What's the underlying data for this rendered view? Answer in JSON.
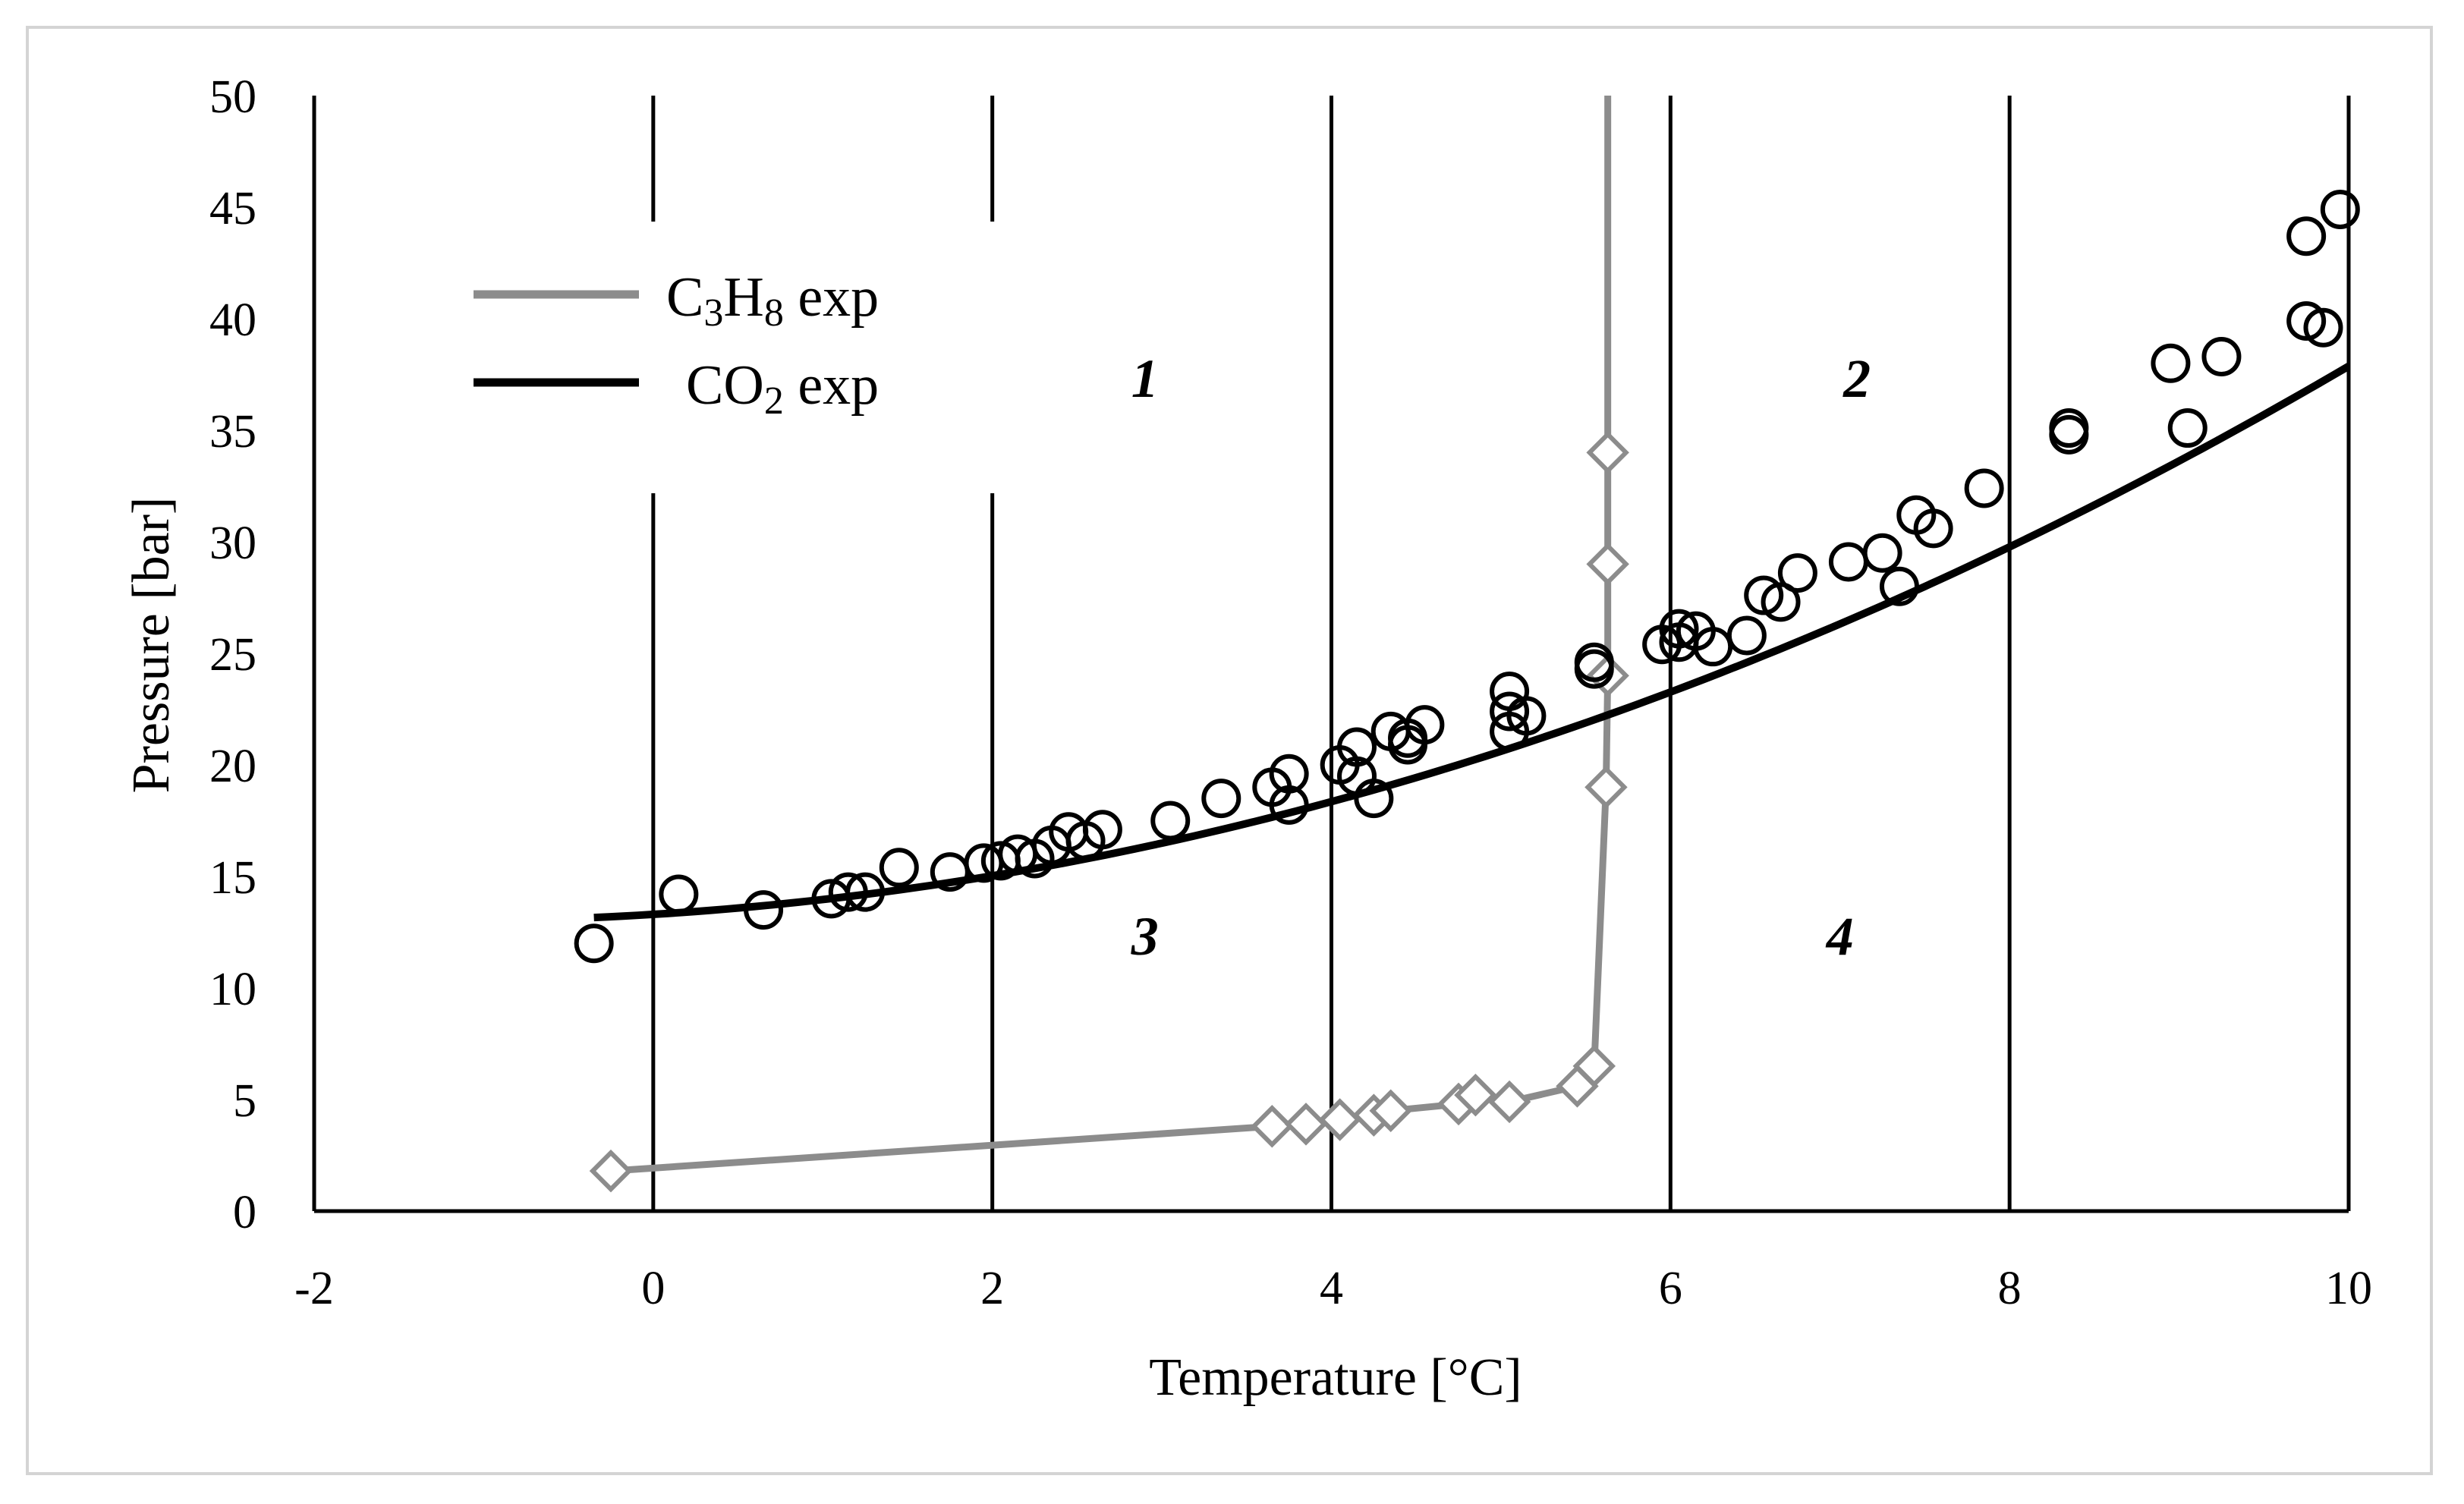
{
  "chart_data": {
    "type": "scatter",
    "title": "",
    "xlabel": "Temperature [°C]",
    "ylabel": "Pressure [bar]",
    "xlim": [
      -2,
      10
    ],
    "ylim": [
      0,
      50
    ],
    "x_ticks": [
      -2,
      0,
      2,
      4,
      6,
      8,
      10
    ],
    "y_ticks": [
      0,
      5,
      10,
      15,
      20,
      25,
      30,
      35,
      40,
      45,
      50
    ],
    "grid": "vertical lines at x = 0, 2, 4, 6, 8, 10",
    "legend": {
      "position": "top-left",
      "entries": [
        {
          "formula": [
            "C",
            "3",
            "H",
            "8"
          ],
          "suffix": " exp",
          "color": "#8c8c8c"
        },
        {
          "formula": [
            "CO",
            "2"
          ],
          "suffix": " exp",
          "color": "#000000"
        }
      ]
    },
    "region_labels": [
      {
        "text": "1",
        "x": 2.9,
        "y": 36.5
      },
      {
        "text": "2",
        "x": 7.1,
        "y": 36.5
      },
      {
        "text": "3",
        "x": 2.9,
        "y": 11.5
      },
      {
        "text": "4",
        "x": 7.0,
        "y": 11.5
      }
    ],
    "series": [
      {
        "name": "C3H8 exp",
        "color": "#8c8c8c",
        "marker": "diamond",
        "line": "connected",
        "points": [
          [
            -0.25,
            1.8
          ],
          [
            3.65,
            3.8
          ],
          [
            3.85,
            3.9
          ],
          [
            4.05,
            4.1
          ],
          [
            4.25,
            4.3
          ],
          [
            4.35,
            4.5
          ],
          [
            4.75,
            4.8
          ],
          [
            4.85,
            5.2
          ],
          [
            5.05,
            4.9
          ],
          [
            5.45,
            5.6
          ],
          [
            5.55,
            6.5
          ],
          [
            5.62,
            19.0
          ],
          [
            5.63,
            24.0
          ],
          [
            5.63,
            29.0
          ],
          [
            5.63,
            34.0
          ],
          [
            5.63,
            50.0
          ]
        ]
      },
      {
        "name": "CO2 exp",
        "color": "#000000",
        "marker": "circle",
        "fit": {
          "type": "quadratic",
          "a": 0.199,
          "b": 0.467,
          "c": 13.3,
          "x_range": [
            -0.35,
            10
          ]
        },
        "points": [
          [
            -0.35,
            12.0
          ],
          [
            0.15,
            14.2
          ],
          [
            0.65,
            13.5
          ],
          [
            1.05,
            14.0
          ],
          [
            1.15,
            14.3
          ],
          [
            1.25,
            14.3
          ],
          [
            1.45,
            15.4
          ],
          [
            1.75,
            15.2
          ],
          [
            1.95,
            15.6
          ],
          [
            2.05,
            15.7
          ],
          [
            2.15,
            16.0
          ],
          [
            2.25,
            15.8
          ],
          [
            2.35,
            16.4
          ],
          [
            2.45,
            17.0
          ],
          [
            2.55,
            16.6
          ],
          [
            2.65,
            17.1
          ],
          [
            3.05,
            17.5
          ],
          [
            3.35,
            18.5
          ],
          [
            3.65,
            19.0
          ],
          [
            3.75,
            18.2
          ],
          [
            3.75,
            19.6
          ],
          [
            4.05,
            20.0
          ],
          [
            4.15,
            20.8
          ],
          [
            4.15,
            19.5
          ],
          [
            4.25,
            18.5
          ],
          [
            4.35,
            21.5
          ],
          [
            4.45,
            21.2
          ],
          [
            4.45,
            20.9
          ],
          [
            4.55,
            21.8
          ],
          [
            5.05,
            23.3
          ],
          [
            5.05,
            22.4
          ],
          [
            5.05,
            21.5
          ],
          [
            5.15,
            22.2
          ],
          [
            5.55,
            24.3
          ],
          [
            5.55,
            24.6
          ],
          [
            5.95,
            25.4
          ],
          [
            6.05,
            26.1
          ],
          [
            6.05,
            25.5
          ],
          [
            6.15,
            26.0
          ],
          [
            6.25,
            25.3
          ],
          [
            6.45,
            25.8
          ],
          [
            6.55,
            27.6
          ],
          [
            6.65,
            27.3
          ],
          [
            6.75,
            28.6
          ],
          [
            7.05,
            29.1
          ],
          [
            7.25,
            29.5
          ],
          [
            7.35,
            28.0
          ],
          [
            7.45,
            31.2
          ],
          [
            7.55,
            30.6
          ],
          [
            7.85,
            32.4
          ],
          [
            8.35,
            34.8
          ],
          [
            8.35,
            35.1
          ],
          [
            8.95,
            38.0
          ],
          [
            9.05,
            35.1
          ],
          [
            9.25,
            38.3
          ],
          [
            9.75,
            43.7
          ],
          [
            9.75,
            39.9
          ],
          [
            9.85,
            39.6
          ],
          [
            9.95,
            44.9
          ]
        ]
      }
    ]
  }
}
